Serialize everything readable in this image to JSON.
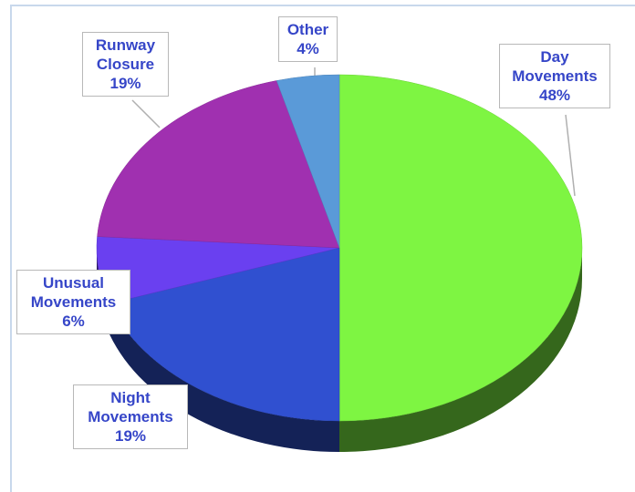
{
  "chart_data": {
    "type": "pie",
    "categories": [
      "Day Movements",
      "Night Movements",
      "Unusual Movements",
      "Runway Closure",
      "Other"
    ],
    "values": [
      48,
      19,
      6,
      19,
      4
    ],
    "value_labels": [
      "48%",
      "19%",
      "6%",
      "19%",
      "4%"
    ],
    "colors": [
      "#7ef542",
      "#3050d0",
      "#6a40f0",
      "#a030b0",
      "#5a9ad8"
    ]
  }
}
